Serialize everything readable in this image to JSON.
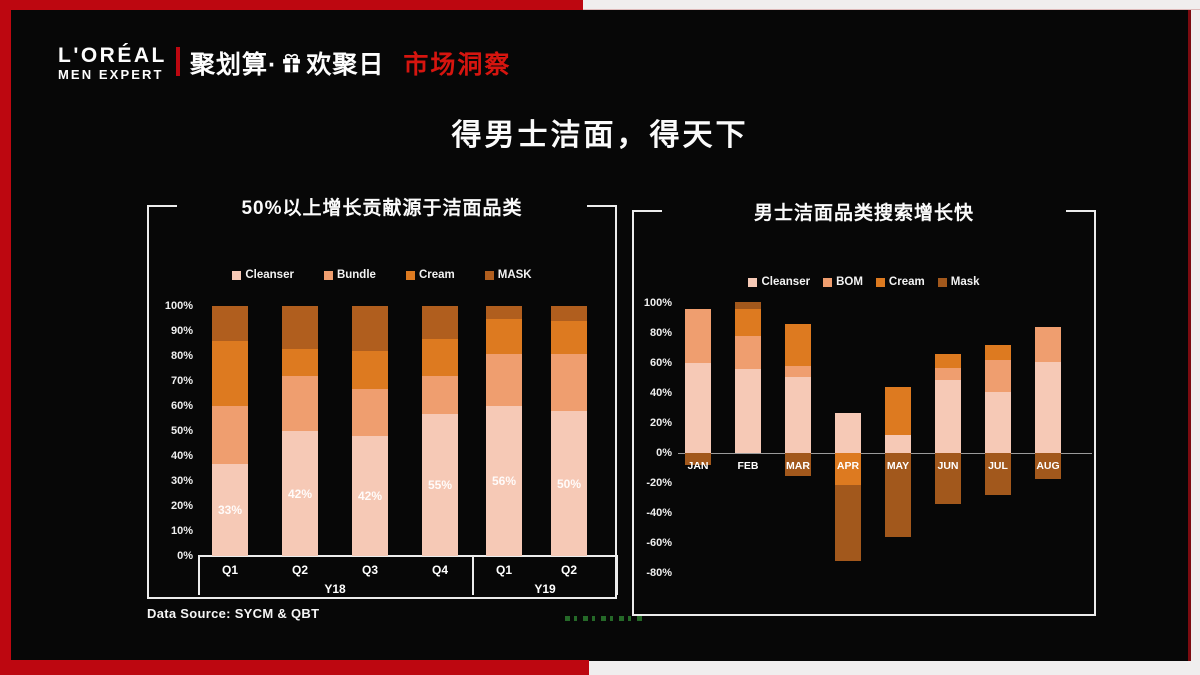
{
  "header": {
    "brand_line1": "L'ORÉAL",
    "brand_line2": "MEN EXPERT",
    "campaign_prefix": "聚划算·",
    "campaign_suffix": "欢聚日",
    "section_title": "市场洞察"
  },
  "title": "得男士洁面，得天下",
  "footer": {
    "data_source": "Data Source: SYCM & QBT"
  },
  "colors": {
    "accent_red": "#bd0710",
    "slide_black": "#070707",
    "cleanser": "#f6c9b6",
    "bundle": "#ef9e6f",
    "cream": "#dd7a20",
    "mask_left": "#b05e1e",
    "mask_right": "#a2581c",
    "zero_line_gray": "#9a9a9a"
  },
  "chart_data": [
    {
      "id": "growth-contribution",
      "type": "bar",
      "stacked": true,
      "grid": false,
      "legend_position": "top",
      "title": "50%以上增长贡献源于洁面品类",
      "categories": [
        "Q1",
        "Q2",
        "Q3",
        "Q4",
        "Q1",
        "Q2"
      ],
      "groups": [
        {
          "label": "Y18",
          "span": 4
        },
        {
          "label": "Y19",
          "span": 2
        }
      ],
      "series": [
        {
          "name": "Cleanser",
          "color": "#f6c9b6",
          "values": [
            37,
            50,
            48,
            57,
            60,
            58
          ]
        },
        {
          "name": "Bundle",
          "color": "#ef9e6f",
          "values": [
            23,
            22,
            19,
            15,
            21,
            23
          ]
        },
        {
          "name": "Cream",
          "color": "#dd7a20",
          "values": [
            26,
            11,
            15,
            15,
            14,
            13
          ]
        },
        {
          "name": "MASK",
          "color": "#b05e1e",
          "values": [
            14,
            17,
            18,
            13,
            5,
            6
          ]
        }
      ],
      "bar_labels": [
        "33%",
        "42%",
        "42%",
        "55%",
        "56%",
        "50%"
      ],
      "ylim": [
        0,
        100
      ],
      "ytick_values": [
        100,
        90,
        80,
        70,
        60,
        50,
        40,
        30,
        20,
        10,
        0
      ],
      "ytick_labels": [
        "100%",
        "90%",
        "80%",
        "70%",
        "60%",
        "50%",
        "40%",
        "30%",
        "20%",
        "10%",
        "0%"
      ]
    },
    {
      "id": "search-growth",
      "type": "bar",
      "stacked": true,
      "grid": false,
      "legend_position": "top",
      "title": "男士洁面品类搜索增长快",
      "categories": [
        "JAN",
        "FEB",
        "MAR",
        "APR",
        "MAY",
        "JUN",
        "JUL",
        "AUG"
      ],
      "series": [
        {
          "name": "Cleanser",
          "color": "#f6c9b6",
          "values": [
            60,
            56,
            51,
            27,
            12,
            49,
            41,
            61
          ]
        },
        {
          "name": "BOM",
          "color": "#ef9e6f",
          "values": [
            36,
            22,
            7,
            0,
            0,
            8,
            21,
            23
          ]
        },
        {
          "name": "Cream",
          "color": "#dd7a20",
          "values": [
            0,
            18,
            28,
            -21,
            32,
            9,
            10,
            0
          ]
        },
        {
          "name": "Mask",
          "color": "#a2581c",
          "values": [
            -8,
            5,
            -15,
            -51,
            -56,
            -34,
            -28,
            -17
          ]
        }
      ],
      "ylim": [
        -80,
        100
      ],
      "ytick_values": [
        100,
        80,
        60,
        40,
        20,
        0,
        -20,
        -40,
        -60,
        -80
      ],
      "ytick_labels": [
        "100%",
        "80%",
        "60%",
        "40%",
        "20%",
        "0%",
        "-20%",
        "-40%",
        "-60%",
        "-80%"
      ]
    }
  ]
}
